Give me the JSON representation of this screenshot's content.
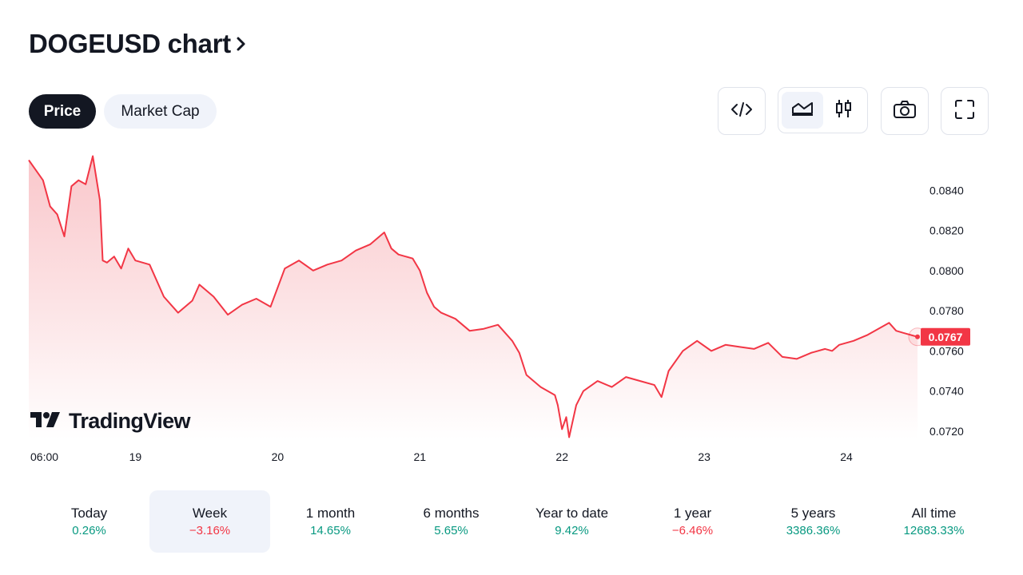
{
  "header": {
    "title": "DOGEUSD chart",
    "chevron_icon": "chevron-right-icon"
  },
  "tabs": [
    {
      "label": "Price",
      "active": true
    },
    {
      "label": "Market Cap",
      "active": false
    }
  ],
  "toolbar": {
    "embed_icon": "code-icon",
    "line_style_icon": "area-chart-icon",
    "candle_style_icon": "candlestick-icon",
    "snapshot_icon": "camera-icon",
    "fullscreen_icon": "fullscreen-icon",
    "active_style": "area"
  },
  "watermark": {
    "text": "TradingView"
  },
  "colors": {
    "line": "#f23645",
    "fill_top": "#f9c4c8",
    "fill_bottom": "#ffffff",
    "positive": "#089981",
    "negative": "#f23645",
    "text": "#131722",
    "axis_text": "#131722"
  },
  "chart_data": {
    "type": "area",
    "symbol": "DOGEUSD",
    "xlabel": "",
    "ylabel": "",
    "ylim": [
      0.0716,
      0.0858
    ],
    "yticks": [
      "0.0840",
      "0.0820",
      "0.0800",
      "0.0780",
      "0.0760",
      "0.0740",
      "0.0720"
    ],
    "xticks": [
      "06:00",
      "19",
      "20",
      "21",
      "22",
      "23",
      "24"
    ],
    "xtick_positions": [
      0,
      0.75,
      1.75,
      2.75,
      3.75,
      4.75,
      5.75
    ],
    "xlim": [
      0,
      6.25
    ],
    "last_price": "0.0767",
    "grid": false,
    "series": [
      {
        "x": [
          0,
          0.05,
          0.1,
          0.15,
          0.2,
          0.25,
          0.3,
          0.35,
          0.4,
          0.45,
          0.5,
          0.52,
          0.55,
          0.6,
          0.65,
          0.7,
          0.75,
          0.85,
          0.95,
          1.05,
          1.15,
          1.2,
          1.3,
          1.4,
          1.5,
          1.6,
          1.7,
          1.8,
          1.9,
          2.0,
          2.1,
          2.2,
          2.3,
          2.4,
          2.5,
          2.55,
          2.6,
          2.7,
          2.75,
          2.8,
          2.85,
          2.9,
          3.0,
          3.1,
          3.2,
          3.3,
          3.4,
          3.45,
          3.5,
          3.6,
          3.7,
          3.72,
          3.75,
          3.78,
          3.8,
          3.85,
          3.9,
          4.0,
          4.1,
          4.2,
          4.3,
          4.4,
          4.45,
          4.5,
          4.6,
          4.7,
          4.8,
          4.9,
          5.0,
          5.1,
          5.2,
          5.3,
          5.4,
          5.5,
          5.6,
          5.65,
          5.7,
          5.8,
          5.9,
          6.0,
          6.05,
          6.1,
          6.15,
          6.25
        ],
        "values": [
          0.0855,
          0.085,
          0.0845,
          0.0832,
          0.0828,
          0.0817,
          0.0842,
          0.0845,
          0.0843,
          0.0857,
          0.0835,
          0.0805,
          0.0804,
          0.0807,
          0.0801,
          0.0811,
          0.0805,
          0.0803,
          0.0787,
          0.0779,
          0.0785,
          0.0793,
          0.0787,
          0.0778,
          0.0783,
          0.0786,
          0.0782,
          0.0801,
          0.0805,
          0.08,
          0.0803,
          0.0805,
          0.081,
          0.0813,
          0.0819,
          0.0811,
          0.0808,
          0.0806,
          0.08,
          0.0789,
          0.0782,
          0.0779,
          0.0776,
          0.077,
          0.0771,
          0.0773,
          0.0765,
          0.0759,
          0.0748,
          0.0742,
          0.0738,
          0.0733,
          0.0721,
          0.0727,
          0.0717,
          0.0733,
          0.074,
          0.0745,
          0.0742,
          0.0747,
          0.0745,
          0.0743,
          0.0737,
          0.075,
          0.076,
          0.0765,
          0.076,
          0.0763,
          0.0762,
          0.0761,
          0.0764,
          0.0757,
          0.0756,
          0.0759,
          0.0761,
          0.076,
          0.0763,
          0.0765,
          0.0768,
          0.0772,
          0.0774,
          0.077,
          0.0769,
          0.0767
        ]
      }
    ]
  },
  "periods": [
    {
      "label": "Today",
      "value": "0.26%",
      "sign": "pos",
      "selected": false
    },
    {
      "label": "Week",
      "value": "−3.16%",
      "sign": "neg",
      "selected": true
    },
    {
      "label": "1 month",
      "value": "14.65%",
      "sign": "pos",
      "selected": false
    },
    {
      "label": "6 months",
      "value": "5.65%",
      "sign": "pos",
      "selected": false
    },
    {
      "label": "Year to date",
      "value": "9.42%",
      "sign": "pos",
      "selected": false
    },
    {
      "label": "1 year",
      "value": "−6.46%",
      "sign": "neg",
      "selected": false
    },
    {
      "label": "5 years",
      "value": "3386.36%",
      "sign": "pos",
      "selected": false
    },
    {
      "label": "All time",
      "value": "12683.33%",
      "sign": "pos",
      "selected": false
    }
  ]
}
